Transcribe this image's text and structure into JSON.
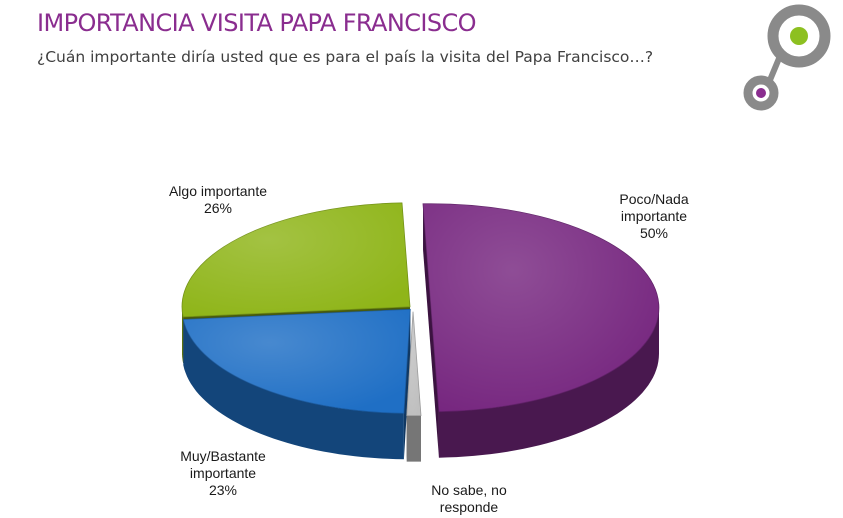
{
  "header": {
    "title": "IMPORTANCIA VISITA PAPA FRANCISCO",
    "question": "¿Cuán importante diría usted que es para el país la visita del Papa Francisco…?"
  },
  "logo": {
    "icon": "two-linked-circles-logo",
    "colors": {
      "ring": "#8a8a8a",
      "green_dot": "#8dc021",
      "purple_dot": "#8a2d8f"
    }
  },
  "chart_data": {
    "type": "pie",
    "style": "3d-exploded",
    "slices": [
      {
        "label": "Poco/Nada importante",
        "label_lines": [
          "Poco/Nada",
          "importante",
          "50%"
        ],
        "value": 50,
        "color": "#76267f"
      },
      {
        "label": "No sabe, no responde",
        "label_lines": [
          "No sabe, no",
          "responde"
        ],
        "value": 1,
        "color": "#bfbfbf"
      },
      {
        "label": "Muy/Bastante importante",
        "label_lines": [
          "Muy/Bastante",
          "importante",
          "23%"
        ],
        "value": 23,
        "color": "#1f6fc5"
      },
      {
        "label": "Algo importante",
        "label_lines": [
          "Algo importante",
          "26%"
        ],
        "value": 26,
        "color": "#8fb519"
      }
    ]
  }
}
